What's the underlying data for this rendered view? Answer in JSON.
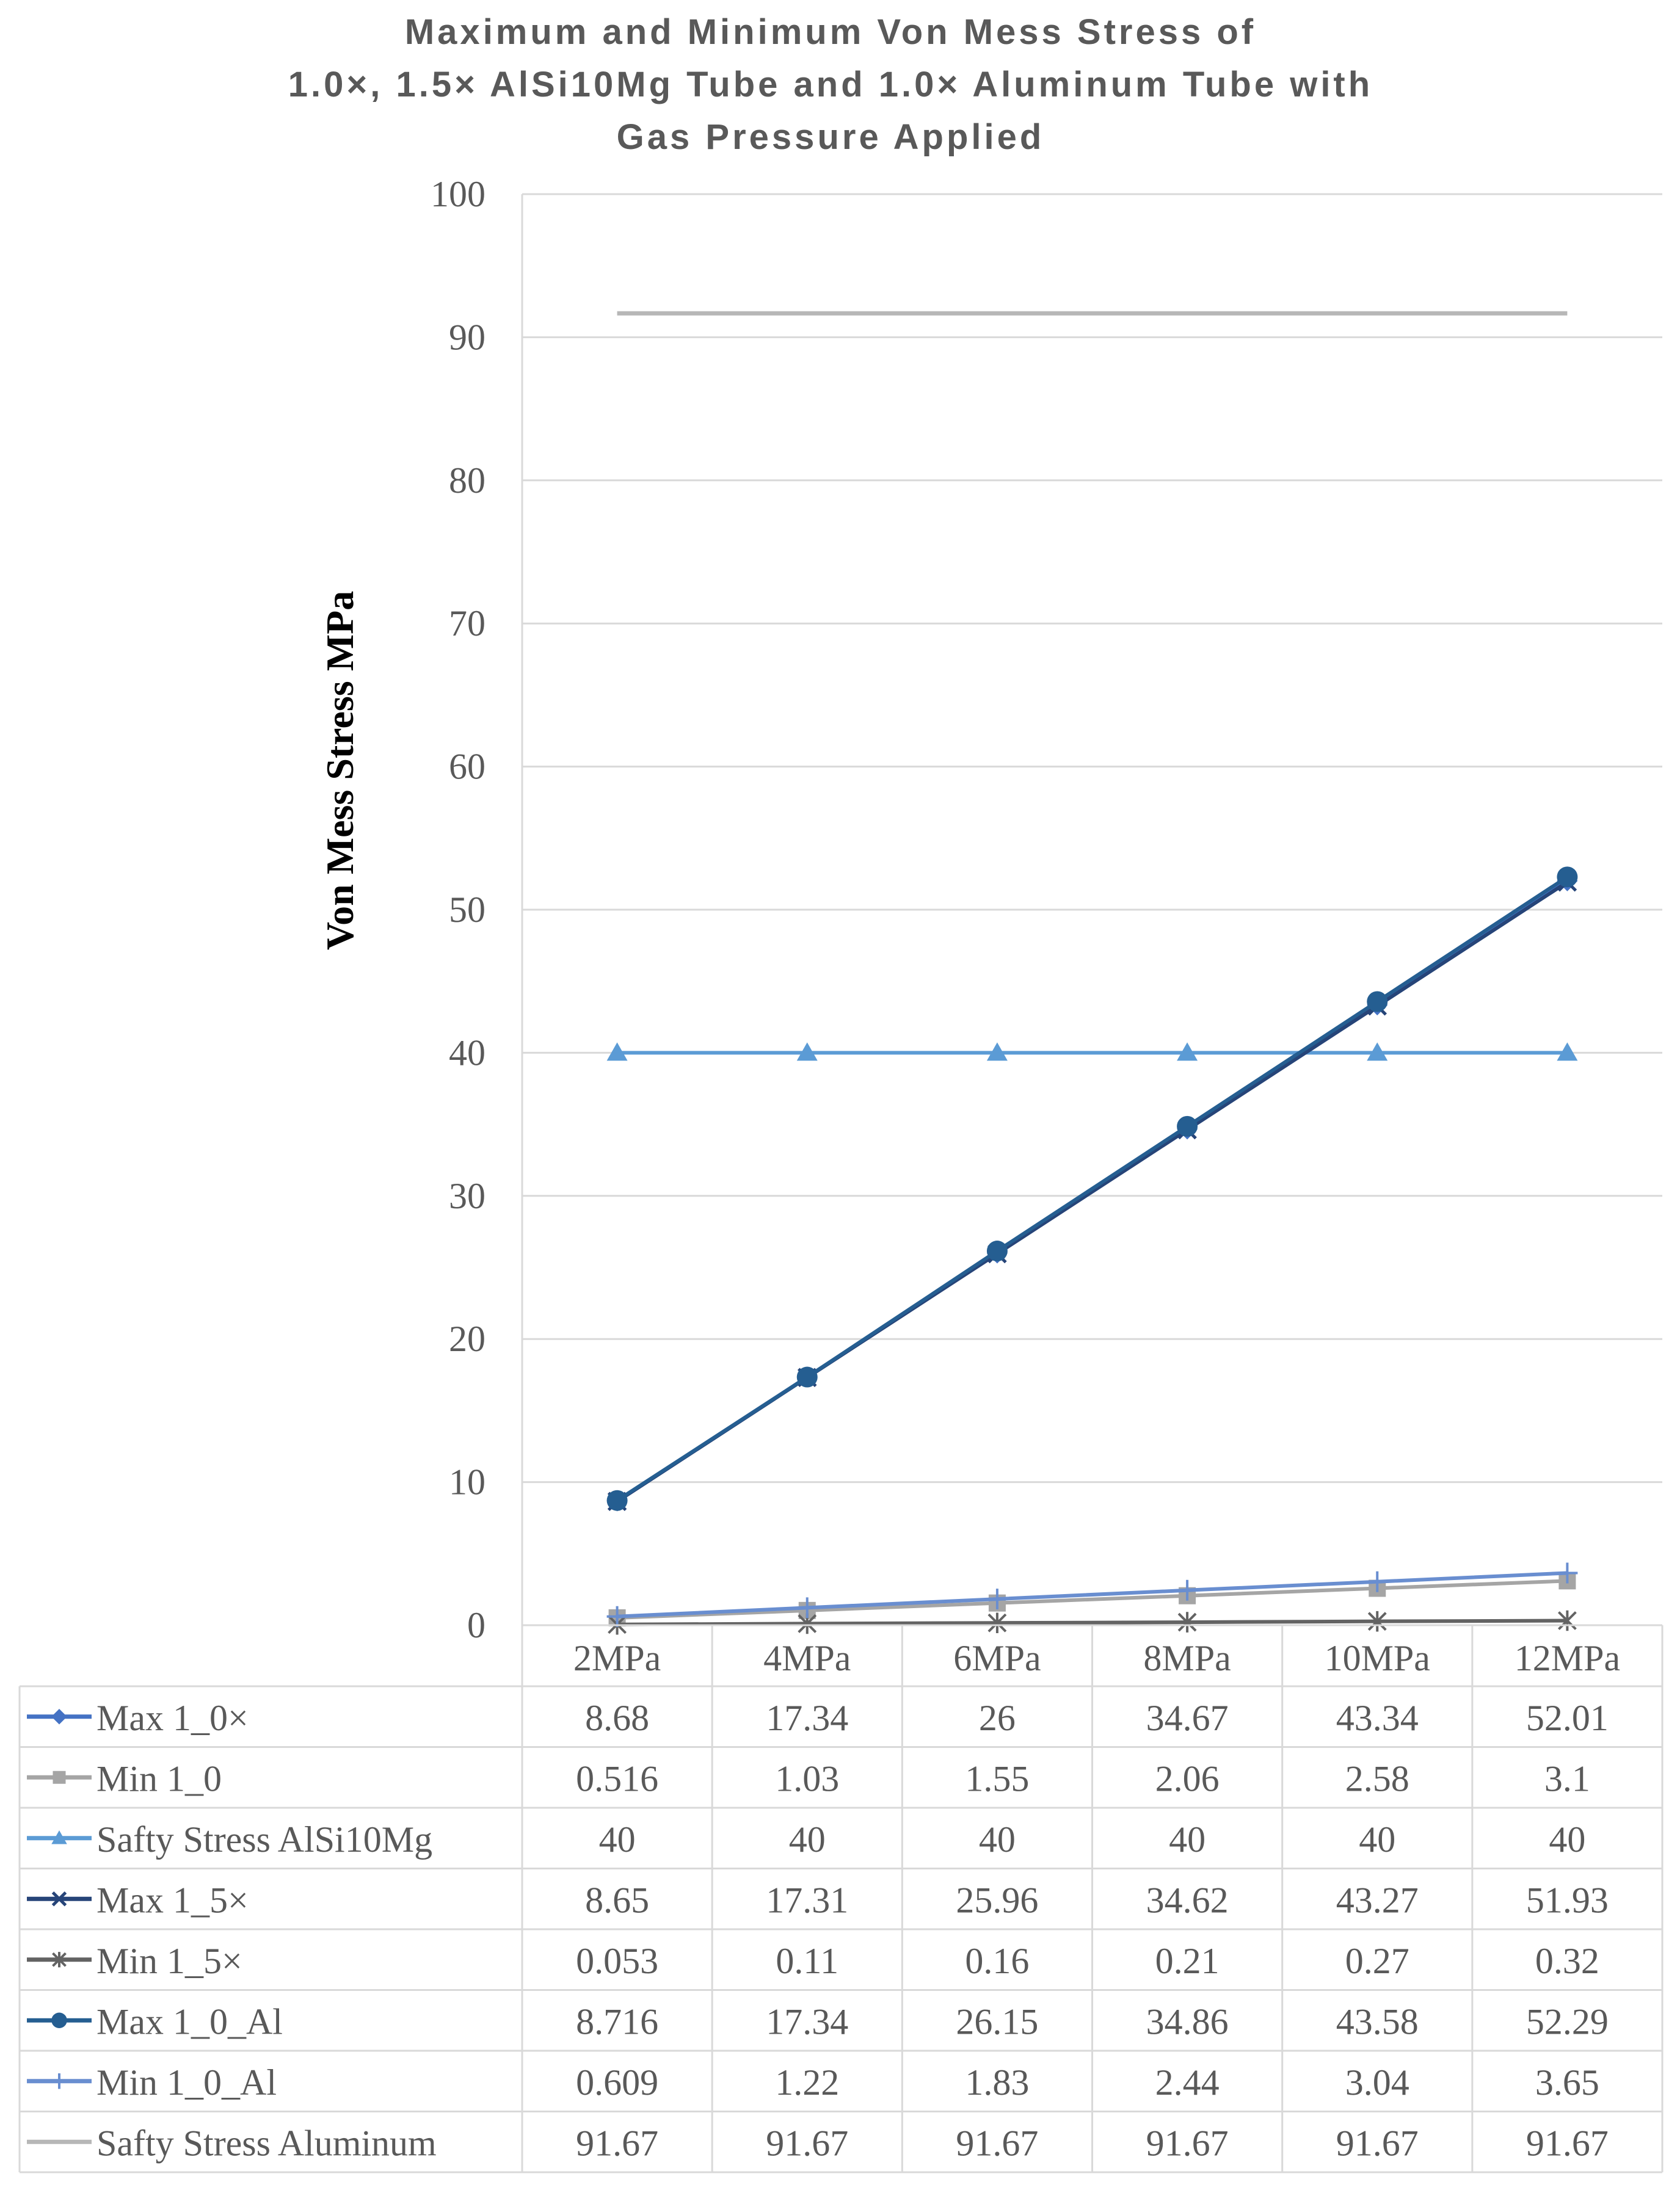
{
  "chart_data": {
    "type": "line",
    "title": [
      "Maximum and Minimum Von Mess Stress of",
      "1.0×, 1.5× AlSi10Mg Tube and 1.0× Aluminum Tube with",
      "Gas Pressure Applied"
    ],
    "xlabel": "",
    "ylabel": "Von Mess Stress MPa",
    "ylim": [
      0,
      100
    ],
    "yticks": [
      "0",
      "10",
      "20",
      "30",
      "40",
      "50",
      "60",
      "70",
      "80",
      "90",
      "100"
    ],
    "grid": true,
    "legend": "data-table-bottom",
    "categories": [
      "2MPa",
      "4MPa",
      "6MPa",
      "8MPa",
      "10MPa",
      "12MPa"
    ],
    "series": [
      {
        "name": "Max 1_0×",
        "marker": "diamond",
        "color": "#4472C4",
        "values": [
          8.68,
          17.34,
          26,
          34.67,
          43.34,
          52.01
        ],
        "labels": [
          "8.68",
          "17.34",
          "26",
          "34.67",
          "43.34",
          "52.01"
        ]
      },
      {
        "name": "Min 1_0",
        "marker": "square",
        "color": "#A5A5A5",
        "values": [
          0.516,
          1.03,
          1.55,
          2.06,
          2.58,
          3.1
        ],
        "labels": [
          "0.516",
          "1.03",
          "1.55",
          "2.06",
          "2.58",
          "3.1"
        ]
      },
      {
        "name": "Safty Stress AlSi10Mg",
        "marker": "triangle",
        "color": "#5B9BD5",
        "values": [
          40,
          40,
          40,
          40,
          40,
          40
        ],
        "labels": [
          "40",
          "40",
          "40",
          "40",
          "40",
          "40"
        ]
      },
      {
        "name": "Max 1_5×",
        "marker": "x",
        "color": "#264478",
        "values": [
          8.65,
          17.31,
          25.96,
          34.62,
          43.27,
          51.93
        ],
        "labels": [
          "8.65",
          "17.31",
          "25.96",
          "34.62",
          "43.27",
          "51.93"
        ]
      },
      {
        "name": "Min 1_5×",
        "marker": "star",
        "color": "#636363",
        "values": [
          0.053,
          0.11,
          0.16,
          0.21,
          0.27,
          0.32
        ],
        "labels": [
          "0.053",
          "0.11",
          "0.16",
          "0.21",
          "0.27",
          "0.32"
        ]
      },
      {
        "name": "Max 1_0_Al",
        "marker": "circle",
        "color": "#255E91",
        "values": [
          8.716,
          17.34,
          26.15,
          34.86,
          43.58,
          52.29
        ],
        "labels": [
          "8.716",
          "17.34",
          "26.15",
          "34.86",
          "43.58",
          "52.29"
        ]
      },
      {
        "name": "Min 1_0_Al",
        "marker": "plus",
        "color": "#698ED0",
        "values": [
          0.609,
          1.22,
          1.83,
          2.44,
          3.04,
          3.65
        ],
        "labels": [
          "0.609",
          "1.22",
          "1.83",
          "2.44",
          "3.04",
          "3.65"
        ]
      },
      {
        "name": "Safty Stress Aluminum",
        "marker": "none",
        "color": "#B7B7B7",
        "values": [
          91.67,
          91.67,
          91.67,
          91.67,
          91.67,
          91.67
        ],
        "labels": [
          "91.67",
          "91.67",
          "91.67",
          "91.67",
          "91.67",
          "91.67"
        ]
      }
    ]
  }
}
